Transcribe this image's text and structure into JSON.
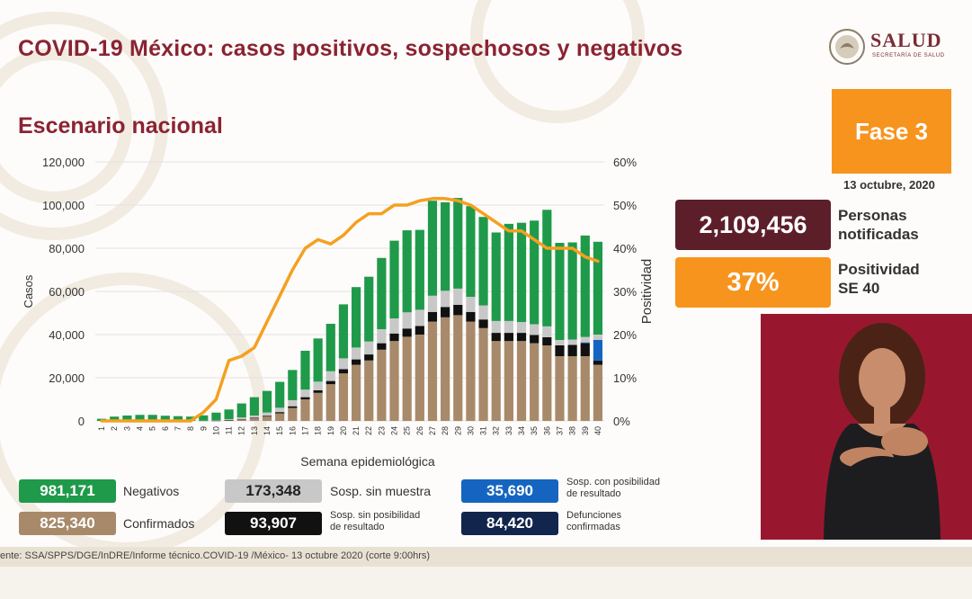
{
  "header": {
    "title": "COVID-19 México: casos positivos, sospechosos y negativos",
    "subtitle": "Escenario nacional"
  },
  "logo": {
    "text": "SALUD",
    "subtext": "SECRETARÍA DE SALUD"
  },
  "phase": {
    "label": "Fase 3",
    "date": "13 octubre, 2020"
  },
  "stats": [
    {
      "value": "2,109,456",
      "label_line1": "Personas",
      "label_line2": "notificadas",
      "color": "#5c1f2a"
    },
    {
      "value": "37%",
      "label_line1": "Positividad",
      "label_line2": "SE 40",
      "color": "#f7941d"
    }
  ],
  "legend": [
    {
      "value": "981,171",
      "label_line1": "Negativos",
      "label_line2": "",
      "color": "#1f9a4a"
    },
    {
      "value": "173,348",
      "label_line1": "Sosp. sin muestra",
      "label_line2": "",
      "color": "#c8c8c8"
    },
    {
      "value": "35,690",
      "label_line1": "Sosp. con posibilidad",
      "label_line2": "de resultado",
      "color": "#1565c0"
    },
    {
      "value": "825,340",
      "label_line1": "Confirmados",
      "label_line2": "",
      "color": "#a8896a"
    },
    {
      "value": "93,907",
      "label_line1": "Sosp. sin posibilidad",
      "label_line2": "de resultado",
      "color": "#111111"
    },
    {
      "value": "84,420",
      "label_line1": "Defunciones",
      "label_line2": "confirmadas",
      "color": "#12254d"
    }
  ],
  "source": "ente: SSA/SPPS/DGE/InDRE/Informe técnico.COVID-19 /México- 13 octubre 2020 (corte 9:00hrs)",
  "chart_data": {
    "type": "bar",
    "stacked": true,
    "xlabel": "Semana epidemiológica",
    "ylabel": "Casos",
    "y2label": "Positividad",
    "ylim": [
      0,
      120000
    ],
    "y2lim": [
      0,
      60
    ],
    "yticks": [
      "0",
      "20,000",
      "40,000",
      "60,000",
      "80,000",
      "100,000",
      "120,000"
    ],
    "y2ticks": [
      "0%",
      "10%",
      "20%",
      "30%",
      "40%",
      "50%",
      "60%"
    ],
    "categories": [
      "1",
      "2",
      "3",
      "4",
      "5",
      "6",
      "7",
      "8",
      "9",
      "10",
      "11",
      "12",
      "13",
      "14",
      "15",
      "16",
      "17",
      "18",
      "19",
      "20",
      "21",
      "22",
      "23",
      "24",
      "25",
      "26",
      "27",
      "28",
      "29",
      "30",
      "31",
      "32",
      "33",
      "34",
      "35",
      "36",
      "37",
      "38",
      "39",
      "40"
    ],
    "series": [
      {
        "name": "Confirmados",
        "color": "#a8896a",
        "values": [
          0,
          0,
          0,
          0,
          0,
          0,
          0,
          0,
          20,
          100,
          300,
          700,
          1200,
          2000,
          3500,
          6000,
          10000,
          13000,
          17000,
          22000,
          26000,
          28000,
          33000,
          37000,
          39000,
          40000,
          46000,
          48000,
          49000,
          46000,
          43000,
          37000,
          37000,
          37000,
          36000,
          35000,
          30000,
          30000,
          30000,
          26000
        ]
      },
      {
        "name": "Sosp. sin posibilidad de resultado",
        "color": "#111111",
        "values": [
          0,
          0,
          0,
          0,
          0,
          0,
          0,
          0,
          0,
          50,
          100,
          200,
          300,
          400,
          600,
          800,
          1000,
          1200,
          1500,
          2000,
          2500,
          2800,
          3000,
          3500,
          3800,
          4000,
          4500,
          4800,
          4800,
          4500,
          4000,
          3800,
          3800,
          3800,
          3800,
          3800,
          5000,
          5200,
          6000,
          2000
        ]
      },
      {
        "name": "Sosp. con posibilidad de resultado",
        "color": "#1565c0",
        "values": [
          0,
          0,
          0,
          0,
          0,
          0,
          0,
          0,
          0,
          0,
          0,
          0,
          0,
          0,
          0,
          0,
          0,
          0,
          0,
          0,
          0,
          0,
          0,
          0,
          0,
          0,
          0,
          0,
          0,
          0,
          0,
          0,
          0,
          0,
          0,
          0,
          0,
          0,
          400,
          9500
        ]
      },
      {
        "name": "Sosp. sin muestra",
        "color": "#c8c8c8",
        "values": [
          0,
          0,
          0,
          0,
          0,
          0,
          0,
          0,
          50,
          200,
          400,
          700,
          1000,
          1500,
          2000,
          2800,
          3500,
          4000,
          4500,
          5000,
          5500,
          6000,
          6500,
          7000,
          7500,
          7500,
          7500,
          7500,
          7500,
          7000,
          6500,
          5500,
          5500,
          5000,
          5000,
          5000,
          2500,
          2500,
          2500,
          2500
        ]
      },
      {
        "name": "Negativos",
        "color": "#1f9a4a",
        "values": [
          1000,
          2000,
          2500,
          2800,
          2800,
          2400,
          2200,
          2000,
          2500,
          3500,
          4500,
          6500,
          8500,
          10000,
          12000,
          14000,
          18000,
          20000,
          22000,
          25000,
          28000,
          30000,
          33000,
          36000,
          38000,
          37000,
          44000,
          41000,
          42000,
          42000,
          41000,
          41000,
          45000,
          46000,
          48000,
          54000,
          45000,
          45000,
          47000,
          43000
        ]
      },
      {
        "name": "Positividad",
        "type": "line",
        "color": "#f5a020",
        "axis": "y2",
        "values": [
          0,
          0,
          0,
          0,
          0,
          0,
          0,
          0,
          2,
          5,
          14,
          15,
          17,
          23,
          29,
          35,
          40,
          42,
          41,
          43,
          46,
          48,
          48,
          50,
          50,
          51,
          51.5,
          51.5,
          51,
          50,
          48,
          46,
          44,
          44,
          42,
          40,
          40,
          40,
          38,
          37
        ]
      }
    ]
  }
}
